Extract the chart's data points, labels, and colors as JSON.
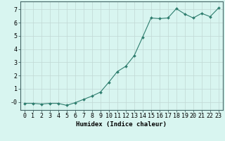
{
  "x": [
    0,
    1,
    2,
    3,
    4,
    5,
    6,
    7,
    8,
    9,
    10,
    11,
    12,
    13,
    14,
    15,
    16,
    17,
    18,
    19,
    20,
    21,
    22,
    23
  ],
  "y": [
    -0.1,
    -0.1,
    -0.15,
    -0.1,
    -0.1,
    -0.25,
    -0.05,
    0.2,
    0.45,
    0.75,
    1.5,
    2.3,
    2.7,
    3.5,
    4.9,
    6.35,
    6.3,
    6.35,
    7.05,
    6.65,
    6.35,
    6.7,
    6.45,
    7.1
  ],
  "line_color": "#2e7d6e",
  "marker": "D",
  "marker_size": 2.0,
  "bg_color": "#d8f5f0",
  "grid_color": "#c0d8d4",
  "xlabel": "Humidex (Indice chaleur)",
  "ylim": [
    -0.6,
    7.6
  ],
  "xlim": [
    -0.5,
    23.5
  ],
  "yticks": [
    0,
    1,
    2,
    3,
    4,
    5,
    6,
    7
  ],
  "ytick_labels": [
    "-0",
    "1",
    "2",
    "3",
    "4",
    "5",
    "6",
    "7"
  ],
  "xtick_labels": [
    "0",
    "1",
    "2",
    "3",
    "4",
    "5",
    "6",
    "7",
    "8",
    "9",
    "10",
    "11",
    "12",
    "13",
    "14",
    "15",
    "16",
    "17",
    "18",
    "19",
    "20",
    "21",
    "22",
    "23"
  ],
  "spine_color": "#446666",
  "label_fontsize": 6.5,
  "tick_fontsize": 6.0
}
